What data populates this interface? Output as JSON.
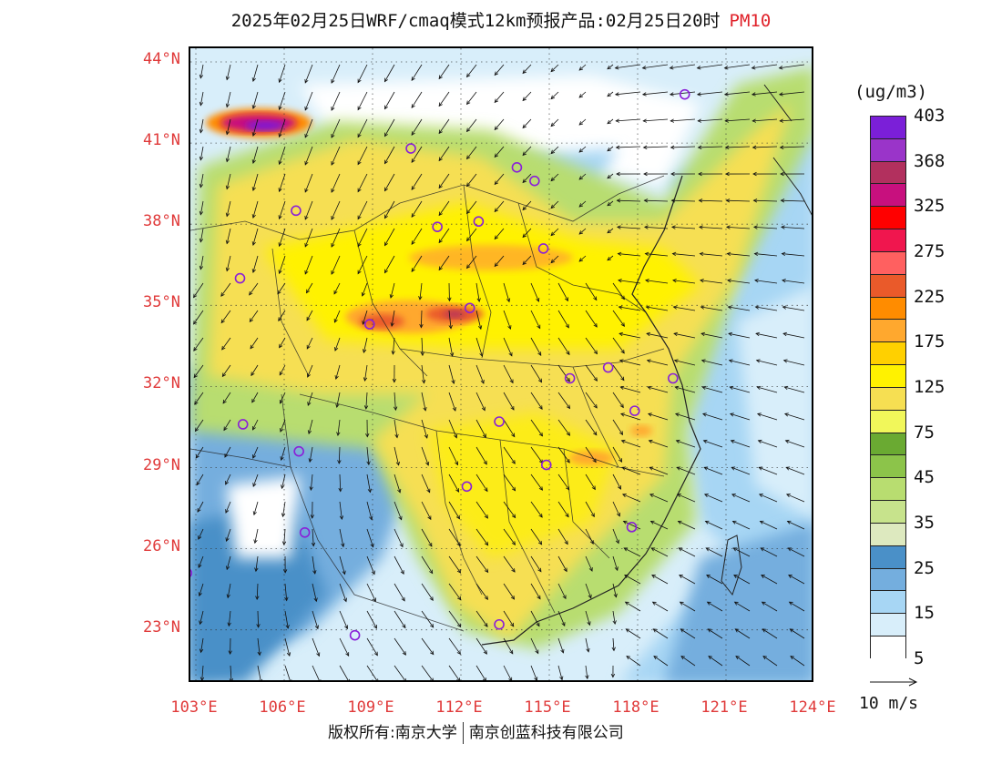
{
  "title": {
    "text": "2025年02月25日WRF/cmaq模式12km预报产品:02月25日20时",
    "pollutant": "PM10"
  },
  "lat_labels": [
    {
      "label": "44°N",
      "lat": 44
    },
    {
      "label": "41°N",
      "lat": 41
    },
    {
      "label": "38°N",
      "lat": 38
    },
    {
      "label": "35°N",
      "lat": 35
    },
    {
      "label": "32°N",
      "lat": 32
    },
    {
      "label": "29°N",
      "lat": 29
    },
    {
      "label": "26°N",
      "lat": 26
    },
    {
      "label": "23°N",
      "lat": 23
    }
  ],
  "lon_labels": [
    {
      "label": "103°E",
      "lon": 103
    },
    {
      "label": "106°E",
      "lon": 106
    },
    {
      "label": "109°E",
      "lon": 109
    },
    {
      "label": "112°E",
      "lon": 112
    },
    {
      "label": "115°E",
      "lon": 115
    },
    {
      "label": "118°E",
      "lon": 118
    },
    {
      "label": "121°E",
      "lon": 121
    },
    {
      "label": "124°E",
      "lon": 124
    }
  ],
  "colorbar": {
    "unit": "(ug/m3)",
    "colors": [
      "#7b1fd8",
      "#9a34c9",
      "#b2305e",
      "#c8107e",
      "#ff0000",
      "#f0164e",
      "#ff6060",
      "#ea5a2a",
      "#ff8c00",
      "#ffa82e",
      "#ffd000",
      "#fff200",
      "#f6df52",
      "#f1f75a",
      "#6aaa32",
      "#8cc44a",
      "#b8dd70",
      "#c7e38c",
      "#dde9bf",
      "#4a90c8",
      "#74aede",
      "#a7d6f4",
      "#d8eefa",
      "#ffffff"
    ],
    "labels": [
      {
        "text": "403",
        "index": 1
      },
      {
        "text": "368",
        "index": 3
      },
      {
        "text": "325",
        "index": 5
      },
      {
        "text": "275",
        "index": 7
      },
      {
        "text": "225",
        "index": 9
      },
      {
        "text": "175",
        "index": 11
      },
      {
        "text": "125",
        "index": 13
      },
      {
        "text": "75",
        "index": 15
      },
      {
        "text": "45",
        "index": 17
      },
      {
        "text": "35",
        "index": 19
      },
      {
        "text": "25",
        "index": 21
      },
      {
        "text": "15",
        "index": 23
      },
      {
        "text": "5",
        "index": 25
      }
    ]
  },
  "vector_legend": "10 m/s",
  "copyright": {
    "left": "版权所有:南京大学",
    "right": "南京创蓝科技有限公司"
  },
  "stations": [
    [
      119.6,
      42.8
    ],
    [
      110.3,
      40.8
    ],
    [
      113.9,
      40.1
    ],
    [
      114.5,
      39.6
    ],
    [
      106.4,
      38.5
    ],
    [
      111.2,
      37.9
    ],
    [
      112.6,
      38.1
    ],
    [
      114.8,
      37.1
    ],
    [
      104.5,
      36.0
    ],
    [
      112.3,
      34.9
    ],
    [
      108.9,
      34.3
    ],
    [
      115.7,
      32.3
    ],
    [
      117.0,
      32.7
    ],
    [
      119.2,
      32.3
    ],
    [
      117.9,
      31.1
    ],
    [
      104.6,
      30.6
    ],
    [
      113.3,
      30.7
    ],
    [
      106.5,
      29.6
    ],
    [
      114.9,
      29.1
    ],
    [
      112.2,
      28.3
    ],
    [
      117.8,
      26.8
    ],
    [
      106.7,
      26.6
    ],
    [
      102.7,
      25.1
    ],
    [
      108.4,
      22.8
    ],
    [
      113.3,
      23.2
    ]
  ],
  "wind_note": "vectors"
}
